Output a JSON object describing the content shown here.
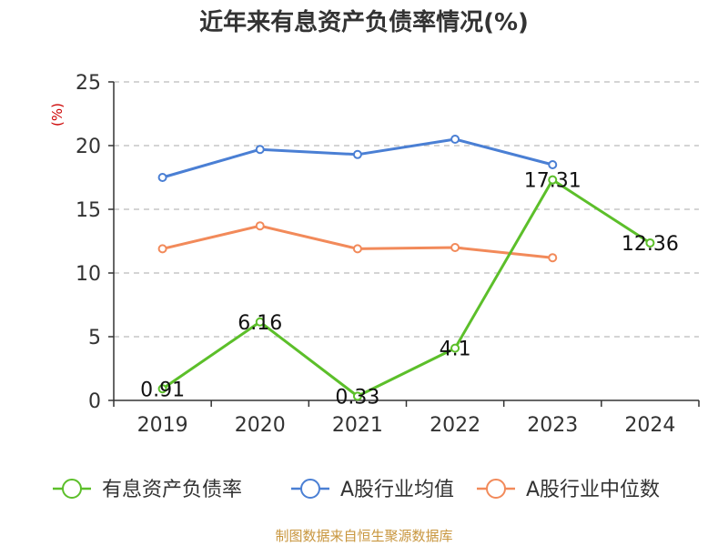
{
  "chart_data": {
    "type": "line",
    "title": "近年来有息资产负债率情况(%)",
    "ylabel": "(%)",
    "xlabel": "",
    "categories": [
      "2019",
      "2020",
      "2021",
      "2022",
      "2023",
      "2024"
    ],
    "ylim": [
      0,
      25
    ],
    "yticks": [
      0,
      5,
      10,
      15,
      20,
      25
    ],
    "grid": true,
    "legend_position": "bottom",
    "series": [
      {
        "name": "有息资产负债率",
        "color": "#5cbf2a",
        "values": [
          0.91,
          6.16,
          0.33,
          4.1,
          17.31,
          12.36
        ],
        "labels": [
          "0.91",
          "6.16",
          "0.33",
          "4.1",
          "17.31",
          "12.36"
        ]
      },
      {
        "name": "A股行业均值",
        "color": "#4a7fd4",
        "values": [
          17.5,
          19.7,
          19.3,
          20.5,
          18.5,
          null
        ]
      },
      {
        "name": "A股行业中位数",
        "color": "#f28a5a",
        "values": [
          11.9,
          13.7,
          11.9,
          12.0,
          11.2,
          null
        ]
      }
    ],
    "source": "制图数据来自恒生聚源数据库"
  }
}
